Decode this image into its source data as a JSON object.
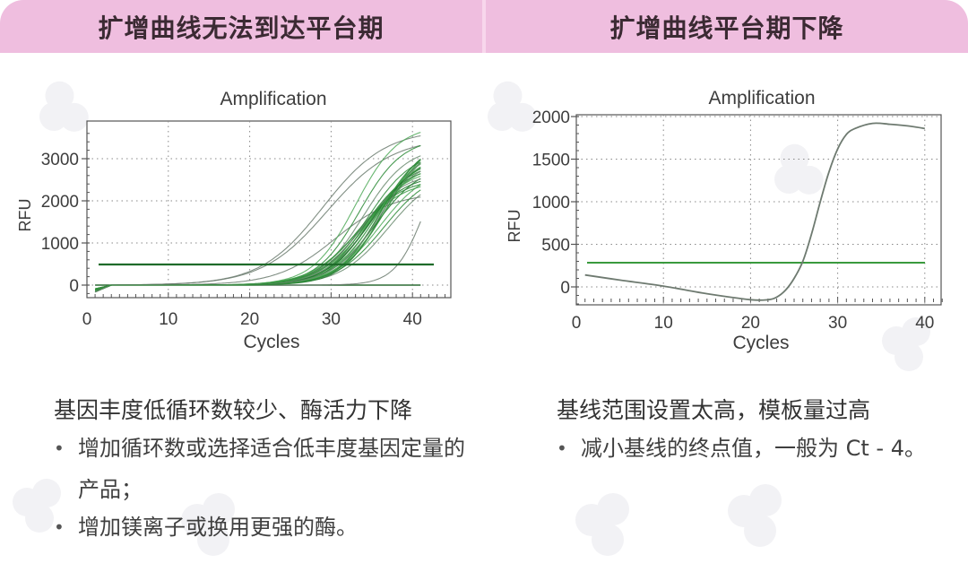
{
  "colors": {
    "header_bg": "#efbedf",
    "header_text": "#3b2a33",
    "curve_green": "#1e8a2c",
    "curve_gray": "#6e7a70",
    "threshold_green": "#1f6b2a",
    "right_threshold": "#3a9a3e"
  },
  "left_panel": {
    "header": "扩增曲线无法到达平台期",
    "cause": "基因丰度低循环数较少、酶活力下降",
    "solutions": [
      {
        "bullet": "•",
        "text": "增加循环数或选择适合低丰度基因定量的产品；"
      },
      {
        "bullet": "•",
        "text": "增加镁离子或换用更强的酶。"
      }
    ]
  },
  "right_panel": {
    "header": "扩增曲线平台期下降",
    "cause": "基线范围设置太高，模板量过高",
    "solutions": [
      {
        "bullet": "•",
        "text": "减小基线的终点值，一般为 Ct - 4。"
      }
    ]
  },
  "chart_data": [
    {
      "type": "line",
      "title": "Amplification",
      "xlabel": "Cycles",
      "ylabel": "RFU",
      "xlim": [
        0,
        43
      ],
      "ylim": [
        -300,
        3800
      ],
      "xticks": [
        "0",
        "10",
        "20",
        "30",
        "40"
      ],
      "yticks": [
        "0",
        "1000",
        "2000",
        "3000"
      ],
      "grid": "dotted",
      "threshold": 490,
      "baseline": 0,
      "series_description": "About 30 sigmoid amplification curves (cycles 1-41); most rise after cycle ~28 with Ct ≈ 30-34 and do not reach a plateau by cycle 41 (ending 2000-3650 RFU); a few early curves Ct ≈ 26-27; one late curve starts rising ~cycle 37 reaching ~1450 at 41.",
      "series": [
        {
          "name": "early-1",
          "midpoint": 29.0,
          "max": 3700,
          "slope": 0.26,
          "end_value": 3500
        },
        {
          "name": "early-2",
          "midpoint": 29.5,
          "max": 3500,
          "slope": 0.25,
          "end_value": 3300
        },
        {
          "name": "early-3",
          "midpoint": 30.5,
          "max": 2200,
          "slope": 0.28,
          "end_value": 2050
        },
        {
          "name": "main-1",
          "midpoint": 33.0,
          "max": 3800,
          "slope": 0.38,
          "end_value": 3650
        },
        {
          "name": "main-2",
          "midpoint": 33.5,
          "max": 3500,
          "slope": 0.38,
          "end_value": 3350
        },
        {
          "name": "main-3",
          "midpoint": 34.0,
          "max": 3300,
          "slope": 0.37,
          "end_value": 3150
        },
        {
          "name": "main-4",
          "midpoint": 34.5,
          "max": 3200,
          "slope": 0.36,
          "end_value": 3050
        },
        {
          "name": "main-5",
          "midpoint": 35.0,
          "max": 3100,
          "slope": 0.36,
          "end_value": 2950
        },
        {
          "name": "main-6",
          "midpoint": 35.5,
          "max": 2900,
          "slope": 0.35,
          "end_value": 2700
        },
        {
          "name": "main-7",
          "midpoint": 36.0,
          "max": 2800,
          "slope": 0.35,
          "end_value": 2550
        },
        {
          "name": "main-8",
          "midpoint": 36.5,
          "max": 2750,
          "slope": 0.34,
          "end_value": 2450
        },
        {
          "name": "main-9",
          "midpoint": 37.0,
          "max": 2700,
          "slope": 0.34,
          "end_value": 2350
        },
        {
          "name": "late-1",
          "midpoint": 41.5,
          "max": 3500,
          "slope": 0.55,
          "end_value": 1450
        }
      ]
    },
    {
      "type": "line",
      "title": "Amplification",
      "xlabel": "Cycles",
      "ylabel": "RFU",
      "xlim": [
        0,
        42
      ],
      "ylim": [
        -200,
        2020
      ],
      "xticks": [
        "0",
        "10",
        "20",
        "30",
        "40"
      ],
      "yticks": [
        "0",
        "500",
        "1000",
        "1500",
        "2000"
      ],
      "grid": "dotted",
      "threshold": 290,
      "series": [
        {
          "name": "sample",
          "x": [
            1,
            5,
            10,
            15,
            20,
            22,
            23,
            24,
            25,
            26,
            27,
            28,
            29,
            30,
            31,
            32,
            34,
            36,
            38,
            40
          ],
          "y": [
            140,
            80,
            10,
            -80,
            -150,
            -150,
            -120,
            -40,
            100,
            300,
            620,
            1000,
            1350,
            1620,
            1790,
            1860,
            1920,
            1910,
            1890,
            1860
          ]
        }
      ]
    }
  ]
}
